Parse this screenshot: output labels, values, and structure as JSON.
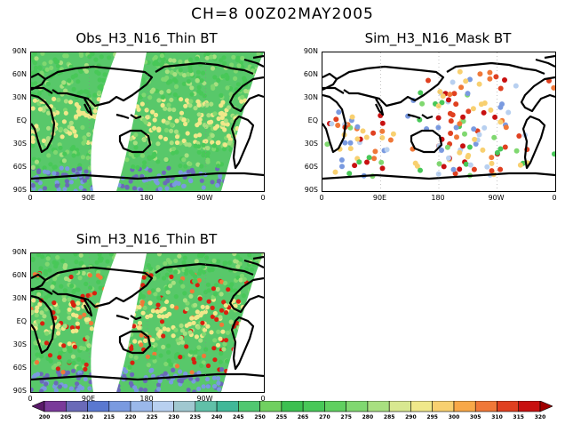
{
  "title": "CH=8    00Z02MAY2005",
  "panels": [
    {
      "id": "obs",
      "title": "Obs_H3_N16_Thin BT",
      "style": "swath"
    },
    {
      "id": "mask",
      "title": "Sim_H3_N16_Mask BT",
      "style": "scatter"
    },
    {
      "id": "sim",
      "title": "Sim_H3_N16_Thin BT",
      "style": "swath-hot"
    }
  ],
  "lat_labels": [
    "90N",
    "60N",
    "30N",
    "EQ",
    "30S",
    "60S",
    "90S"
  ],
  "lon_labels": [
    "0",
    "90E",
    "180",
    "90W",
    "0"
  ],
  "colorbar": {
    "labels": [
      "200",
      "205",
      "210",
      "215",
      "220",
      "225",
      "230",
      "235",
      "240",
      "245",
      "250",
      "255",
      "265",
      "270",
      "275",
      "280",
      "285",
      "290",
      "295",
      "300",
      "305",
      "310",
      "315",
      "320"
    ],
    "colors": [
      "#5a1a6a",
      "#7a3a9a",
      "#6a6ab8",
      "#5a78d0",
      "#7a9ae0",
      "#9ab8ea",
      "#b8d0f0",
      "#a0c8d0",
      "#60c0a8",
      "#40b898",
      "#50c870",
      "#70d060",
      "#3cc050",
      "#48c858",
      "#60d060",
      "#80d870",
      "#a8e080",
      "#d8e890",
      "#f0e88a",
      "#f8d070",
      "#f8a848",
      "#f07838",
      "#e04020",
      "#c81010",
      "#a00000"
    ]
  }
}
